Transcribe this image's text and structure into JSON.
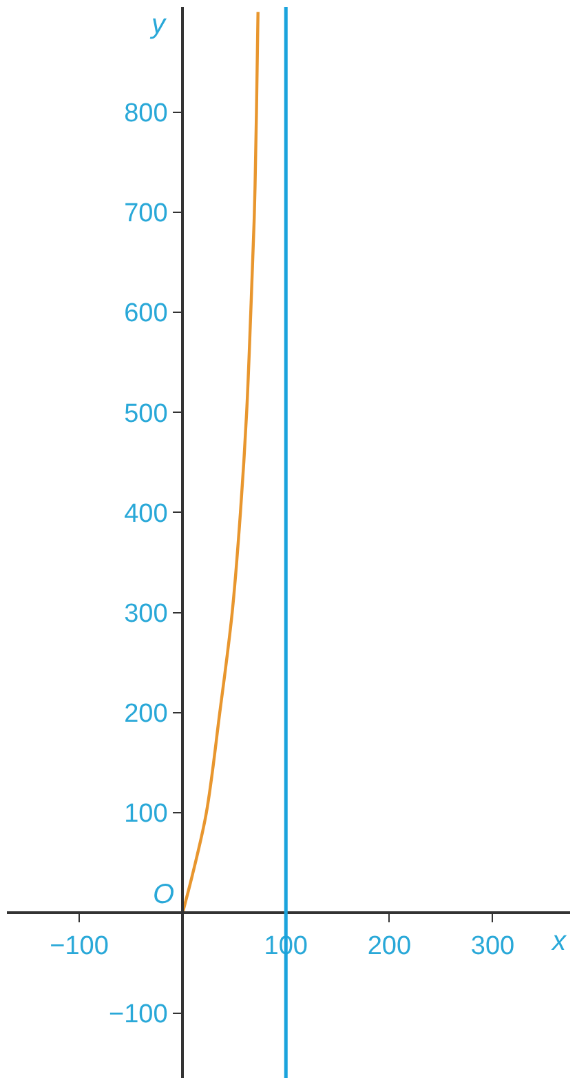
{
  "chart_data": {
    "type": "line",
    "xlabel": "x",
    "ylabel": "y",
    "x": [
      0,
      10,
      23,
      36,
      48,
      56,
      62,
      66,
      69.5,
      71.5,
      73
    ],
    "series": [
      {
        "color": "#e8962e",
        "values": [
          0,
          40,
          100,
          200,
          300,
          400,
          500,
          600,
          700,
          800,
          900
        ]
      }
    ],
    "xlim": [
      -170,
      375
    ],
    "ylim": [
      -165,
      905
    ],
    "xticks": [
      -100,
      100,
      200,
      300
    ],
    "yticks": [
      -100,
      100,
      200,
      300,
      400,
      500,
      600,
      700,
      800
    ],
    "ref_lines": [
      {
        "axis": "x",
        "value": 100,
        "color": "#1aa3dc"
      }
    ],
    "annotations": [
      {
        "text": "O",
        "x": 0,
        "y": 0
      }
    ],
    "marker": "none",
    "line_style": "solid"
  }
}
